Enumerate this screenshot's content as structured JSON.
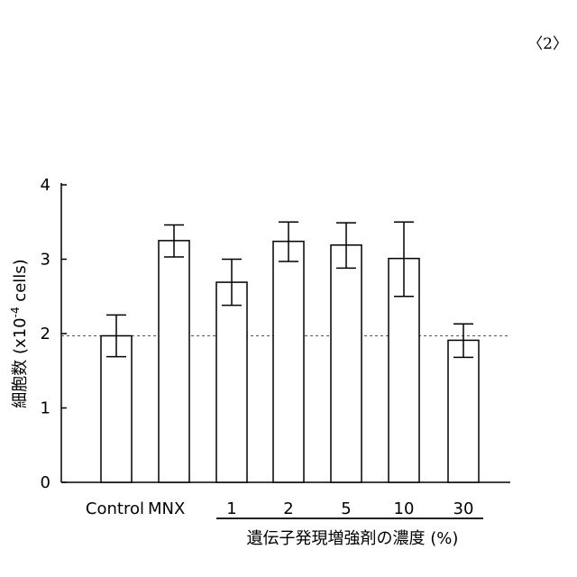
{
  "page_label": "〈2〉",
  "chart_data": {
    "type": "bar",
    "categories": [
      "Control",
      "MNX",
      "1",
      "2",
      "5",
      "10",
      "30"
    ],
    "values": [
      1.97,
      3.25,
      2.69,
      3.24,
      3.19,
      3.01,
      1.91
    ],
    "error_upper": [
      2.25,
      3.46,
      3.0,
      3.5,
      3.49,
      3.5,
      2.13
    ],
    "error_lower": [
      1.69,
      3.03,
      2.38,
      2.97,
      2.88,
      2.5,
      1.68
    ],
    "title": "",
    "ylabel_main": "細胞数 (x10",
    "ylabel_sup": "-4",
    "ylabel_end": " cells)",
    "xlabel": "遺伝子発現増強剤の濃度 (%)",
    "ylim": [
      0,
      4
    ],
    "yticks": [
      "0",
      "1",
      "2",
      "3",
      "4"
    ],
    "reference_line": 1.97,
    "reference_line_style": "dashed",
    "grid": false,
    "legend": "none"
  }
}
